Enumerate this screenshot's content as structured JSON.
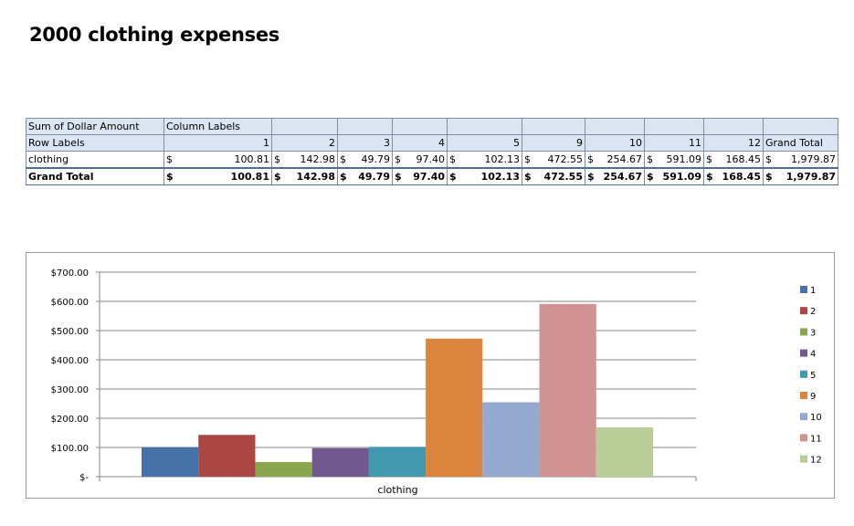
{
  "title": "2000 clothing expenses",
  "pivot": {
    "corner": "Sum of Dollar Amount",
    "column_labels": "Column Labels",
    "row_labels": "Row Labels",
    "columns": [
      "1",
      "2",
      "3",
      "4",
      "5",
      "9",
      "10",
      "11",
      "12"
    ],
    "grand_total_label": "Grand Total",
    "currency": "$",
    "rows": [
      {
        "label": "clothing",
        "values": [
          "100.81",
          "142.98",
          "49.79",
          "97.40",
          "102.13",
          "472.55",
          "254.67",
          "591.09",
          "168.45"
        ],
        "total": "1,979.87"
      }
    ],
    "grand_total_row": {
      "label": "Grand Total",
      "values": [
        "100.81",
        "142.98",
        "49.79",
        "97.40",
        "102.13",
        "472.55",
        "254.67",
        "591.09",
        "168.45"
      ],
      "total": "1,979.87"
    }
  },
  "chart_data": {
    "type": "bar",
    "categories": [
      "clothing"
    ],
    "series": [
      {
        "name": "1",
        "values": [
          100.81
        ],
        "color": "#4572a7"
      },
      {
        "name": "2",
        "values": [
          142.98
        ],
        "color": "#aa4643"
      },
      {
        "name": "3",
        "values": [
          49.79
        ],
        "color": "#89a54e"
      },
      {
        "name": "4",
        "values": [
          97.4
        ],
        "color": "#71588f"
      },
      {
        "name": "5",
        "values": [
          102.13
        ],
        "color": "#4198af"
      },
      {
        "name": "9",
        "values": [
          472.55
        ],
        "color": "#db843d"
      },
      {
        "name": "10",
        "values": [
          254.67
        ],
        "color": "#93a9cf"
      },
      {
        "name": "11",
        "values": [
          591.09
        ],
        "color": "#d09392"
      },
      {
        "name": "12",
        "values": [
          168.45
        ],
        "color": "#b9cd96"
      }
    ],
    "yticks": [
      "$-",
      "$100.00",
      "$200.00",
      "$300.00",
      "$400.00",
      "$500.00",
      "$600.00",
      "$700.00"
    ],
    "ylim": [
      0,
      700
    ],
    "legend_position": "right",
    "grid": true
  }
}
